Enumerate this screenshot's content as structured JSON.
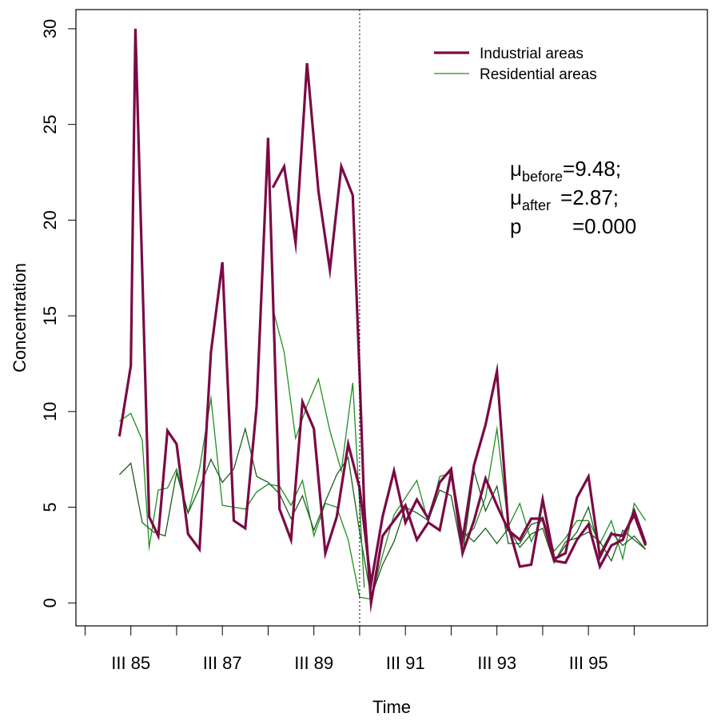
{
  "chart_data": {
    "type": "line",
    "title": "",
    "xlabel": "Time",
    "ylabel": "Concentration",
    "xlim": [
      1983.8,
      1997.6
    ],
    "ylim": [
      -1.2,
      31.0
    ],
    "y_ticks": [
      0,
      5,
      10,
      15,
      20,
      25,
      30
    ],
    "x_tick_labels": [
      {
        "x": 1985.0,
        "label": "III 85"
      },
      {
        "x": 1987.0,
        "label": "III 87"
      },
      {
        "x": 1989.0,
        "label": "III 89"
      },
      {
        "x": 1991.0,
        "label": "III 91"
      },
      {
        "x": 1993.0,
        "label": "III 93"
      },
      {
        "x": 1995.0,
        "label": "III 95"
      }
    ],
    "x_minor_ticks": [
      1984.0,
      1986.0,
      1988.0,
      1990.0,
      1992.0,
      1994.0,
      1996.0
    ],
    "intervention_x": 1990.0,
    "legend": {
      "position": "top-right",
      "entries": [
        "Industrial areas",
        "Residential areas"
      ]
    },
    "annotation": {
      "mu_symbol": "μ",
      "before_sub": "before",
      "before_val": "=9.48;",
      "after_sub": "after",
      "after_val": "=2.87;",
      "p_label": "p",
      "p_val": "=0.000"
    },
    "colors": {
      "industrial": "#7b0a45",
      "residential_light": "#1f8f1f",
      "residential_dark": "#1b5e1b"
    },
    "series": [
      {
        "name": "Industrial areas",
        "group": "industrial",
        "color": "#7b0a45",
        "width": 3.2,
        "points": [
          [
            1984.75,
            8.7
          ],
          [
            1985.0,
            12.4
          ],
          [
            1985.1,
            30.0
          ],
          [
            1985.4,
            4.5
          ],
          [
            1985.6,
            3.5
          ],
          [
            1985.8,
            9.0
          ],
          [
            1986.0,
            8.3
          ],
          [
            1986.25,
            3.6
          ],
          [
            1986.5,
            2.8
          ],
          [
            1986.75,
            13.1
          ],
          [
            1987.0,
            17.8
          ],
          [
            1987.25,
            4.3
          ],
          [
            1987.5,
            3.9
          ],
          [
            1987.75,
            10.3
          ],
          [
            1988.0,
            24.3
          ],
          [
            1988.25,
            4.9
          ],
          [
            1988.5,
            3.3
          ],
          [
            1988.75,
            10.5
          ],
          [
            1989.0,
            9.1
          ],
          [
            1989.25,
            2.6
          ],
          [
            1989.5,
            4.5
          ],
          [
            1989.75,
            8.3
          ],
          [
            1990.0,
            6.0
          ],
          [
            1990.25,
            1.0
          ],
          [
            1990.5,
            4.5
          ],
          [
            1990.75,
            6.9
          ],
          [
            1991.0,
            4.2
          ],
          [
            1991.25,
            5.4
          ],
          [
            1991.5,
            4.4
          ],
          [
            1991.75,
            6.3
          ],
          [
            1992.0,
            7.0
          ],
          [
            1992.25,
            2.6
          ],
          [
            1992.5,
            4.3
          ],
          [
            1992.75,
            6.5
          ],
          [
            1993.0,
            5.1
          ],
          [
            1993.25,
            3.8
          ],
          [
            1993.5,
            3.3
          ],
          [
            1993.75,
            4.4
          ],
          [
            1994.0,
            4.4
          ],
          [
            1994.25,
            2.2
          ],
          [
            1994.5,
            2.1
          ],
          [
            1994.75,
            3.3
          ],
          [
            1995.0,
            4.1
          ],
          [
            1995.25,
            1.9
          ],
          [
            1995.5,
            3.0
          ],
          [
            1995.75,
            3.3
          ],
          [
            1996.0,
            4.8
          ],
          [
            1996.25,
            3.1
          ]
        ]
      },
      {
        "name": "Industrial areas",
        "group": "industrial",
        "color": "#7b0a45",
        "width": 3.2,
        "points": [
          [
            1988.1,
            21.7
          ],
          [
            1988.35,
            22.8
          ],
          [
            1988.6,
            18.8
          ],
          [
            1988.85,
            28.2
          ],
          [
            1989.1,
            21.5
          ],
          [
            1989.35,
            17.4
          ],
          [
            1989.6,
            22.8
          ],
          [
            1989.85,
            21.3
          ],
          [
            1990.0,
            11.9
          ],
          [
            1990.1,
            5.0
          ],
          [
            1990.25,
            0.0
          ],
          [
            1990.5,
            3.5
          ],
          [
            1990.75,
            4.3
          ],
          [
            1991.0,
            5.1
          ],
          [
            1991.25,
            3.3
          ],
          [
            1991.5,
            4.2
          ],
          [
            1991.75,
            3.8
          ],
          [
            1992.0,
            6.8
          ],
          [
            1992.25,
            3.3
          ],
          [
            1992.5,
            7.2
          ],
          [
            1992.75,
            9.3
          ],
          [
            1993.0,
            12.1
          ],
          [
            1993.25,
            4.0
          ],
          [
            1993.5,
            1.9
          ],
          [
            1993.75,
            2.0
          ],
          [
            1994.0,
            5.4
          ],
          [
            1994.25,
            2.3
          ],
          [
            1994.5,
            2.6
          ],
          [
            1994.75,
            5.5
          ],
          [
            1995.0,
            6.6
          ],
          [
            1995.25,
            2.4
          ],
          [
            1995.5,
            3.6
          ],
          [
            1995.75,
            3.5
          ],
          [
            1996.0,
            4.6
          ],
          [
            1996.25,
            3.0
          ]
        ]
      },
      {
        "name": "Residential areas",
        "group": "residential",
        "color": "#1f8f1f",
        "width": 1.3,
        "points": [
          [
            1984.75,
            9.5
          ],
          [
            1985.0,
            9.9
          ],
          [
            1985.25,
            8.5
          ],
          [
            1985.4,
            2.9
          ],
          [
            1985.6,
            5.9
          ],
          [
            1985.8,
            6.0
          ],
          [
            1986.0,
            7.0
          ],
          [
            1986.25,
            4.7
          ],
          [
            1986.5,
            7.0
          ],
          [
            1986.75,
            10.7
          ],
          [
            1987.0,
            5.1
          ],
          [
            1987.25,
            5.0
          ],
          [
            1987.5,
            4.9
          ],
          [
            1987.75,
            5.8
          ],
          [
            1988.0,
            6.2
          ],
          [
            1988.25,
            6.1
          ],
          [
            1988.5,
            5.1
          ],
          [
            1988.75,
            6.4
          ],
          [
            1989.0,
            3.5
          ],
          [
            1989.25,
            5.2
          ],
          [
            1989.5,
            5.0
          ],
          [
            1989.75,
            3.3
          ],
          [
            1990.0,
            0.3
          ],
          [
            1990.25,
            0.2
          ],
          [
            1990.5,
            2.5
          ],
          [
            1990.75,
            4.6
          ],
          [
            1991.0,
            5.5
          ],
          [
            1991.25,
            6.4
          ],
          [
            1991.5,
            4.2
          ],
          [
            1991.75,
            6.6
          ],
          [
            1992.0,
            6.8
          ],
          [
            1992.25,
            3.4
          ],
          [
            1992.5,
            3.9
          ],
          [
            1992.75,
            5.5
          ],
          [
            1993.0,
            9.1
          ],
          [
            1993.25,
            4.0
          ],
          [
            1993.5,
            5.2
          ],
          [
            1993.75,
            3.2
          ],
          [
            1994.0,
            4.5
          ],
          [
            1994.25,
            2.7
          ],
          [
            1994.5,
            3.4
          ],
          [
            1994.75,
            4.3
          ],
          [
            1995.0,
            4.3
          ],
          [
            1995.25,
            3.1
          ],
          [
            1995.5,
            4.3
          ],
          [
            1995.75,
            2.3
          ],
          [
            1996.0,
            5.2
          ],
          [
            1996.25,
            4.3
          ]
        ]
      },
      {
        "name": "Residential areas",
        "group": "residential",
        "color": "#1b5e1b",
        "width": 1.3,
        "points": [
          [
            1984.75,
            6.7
          ],
          [
            1985.0,
            7.3
          ],
          [
            1985.25,
            4.2
          ],
          [
            1985.5,
            3.7
          ],
          [
            1985.75,
            3.5
          ],
          [
            1986.0,
            6.8
          ],
          [
            1986.25,
            4.7
          ],
          [
            1986.5,
            6.0
          ],
          [
            1986.75,
            7.5
          ],
          [
            1987.0,
            6.3
          ],
          [
            1987.25,
            7.0
          ],
          [
            1987.5,
            9.1
          ],
          [
            1987.75,
            6.6
          ],
          [
            1988.0,
            6.3
          ],
          [
            1988.25,
            5.7
          ],
          [
            1988.5,
            4.4
          ],
          [
            1988.75,
            5.6
          ],
          [
            1989.0,
            3.8
          ],
          [
            1989.25,
            5.3
          ],
          [
            1989.5,
            6.7
          ],
          [
            1989.75,
            7.6
          ],
          [
            1990.0,
            3.7
          ],
          [
            1990.25,
            0.3
          ],
          [
            1990.5,
            2.0
          ],
          [
            1990.75,
            3.2
          ],
          [
            1991.0,
            5.0
          ],
          [
            1991.25,
            4.7
          ],
          [
            1991.5,
            4.3
          ],
          [
            1991.75,
            5.9
          ],
          [
            1992.0,
            5.6
          ],
          [
            1992.25,
            2.5
          ],
          [
            1992.5,
            6.9
          ],
          [
            1992.75,
            4.8
          ],
          [
            1993.0,
            6.1
          ],
          [
            1993.25,
            3.1
          ],
          [
            1993.5,
            3.1
          ],
          [
            1993.75,
            4.1
          ],
          [
            1994.0,
            4.3
          ],
          [
            1994.25,
            2.1
          ],
          [
            1994.5,
            3.0
          ],
          [
            1994.75,
            3.7
          ],
          [
            1995.0,
            5.0
          ],
          [
            1995.25,
            2.6
          ],
          [
            1995.5,
            3.7
          ],
          [
            1995.75,
            3.0
          ],
          [
            1996.0,
            3.5
          ],
          [
            1996.25,
            2.8
          ]
        ]
      },
      {
        "name": "Residential areas",
        "group": "residential",
        "color": "#1f8f1f",
        "width": 1.3,
        "points": [
          [
            1988.1,
            15.4
          ],
          [
            1988.35,
            13.1
          ],
          [
            1988.6,
            8.6
          ],
          [
            1988.85,
            10.3
          ],
          [
            1989.1,
            11.7
          ],
          [
            1989.35,
            9.0
          ],
          [
            1989.6,
            6.9
          ],
          [
            1989.85,
            11.5
          ],
          [
            1990.1,
            0.8
          ]
        ]
      },
      {
        "name": "Residential areas",
        "group": "residential",
        "color": "#1b5e1b",
        "width": 1.3,
        "points": [
          [
            1992.25,
            3.7
          ],
          [
            1992.5,
            3.2
          ],
          [
            1992.75,
            3.9
          ],
          [
            1993.0,
            3.1
          ],
          [
            1993.25,
            3.9
          ],
          [
            1993.5,
            2.9
          ],
          [
            1993.75,
            3.6
          ],
          [
            1994.0,
            3.9
          ],
          [
            1994.25,
            2.1
          ],
          [
            1994.5,
            3.2
          ],
          [
            1994.75,
            3.4
          ],
          [
            1995.0,
            3.7
          ],
          [
            1995.25,
            3.2
          ],
          [
            1995.5,
            2.2
          ],
          [
            1995.75,
            3.8
          ],
          [
            1996.0,
            3.3
          ],
          [
            1996.25,
            2.8
          ]
        ]
      }
    ]
  }
}
